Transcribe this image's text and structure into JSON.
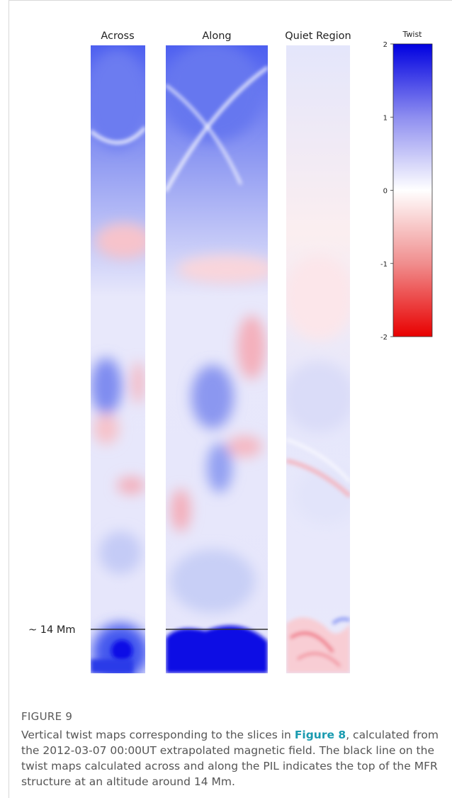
{
  "figure": {
    "panel_titles": [
      "Across",
      "Along",
      "Quiet Region"
    ],
    "annotation": "~ 14 Mm",
    "colorbar": {
      "label": "Twist",
      "lim": [
        -2,
        2
      ],
      "ticks": [
        2,
        1,
        0,
        -1,
        -2
      ]
    },
    "label": "FIGURE 9",
    "caption": {
      "text_before": "Vertical twist maps corresponding to the slices in ",
      "link": "Figure 8",
      "text_after": ", calculated from the 2012-03-07 00:00UT extrapolated magnetic field. The black line on the twist maps calculated across and along the PIL indicates the top of the MFR structure at an altitude around 14 Mm."
    }
  }
}
